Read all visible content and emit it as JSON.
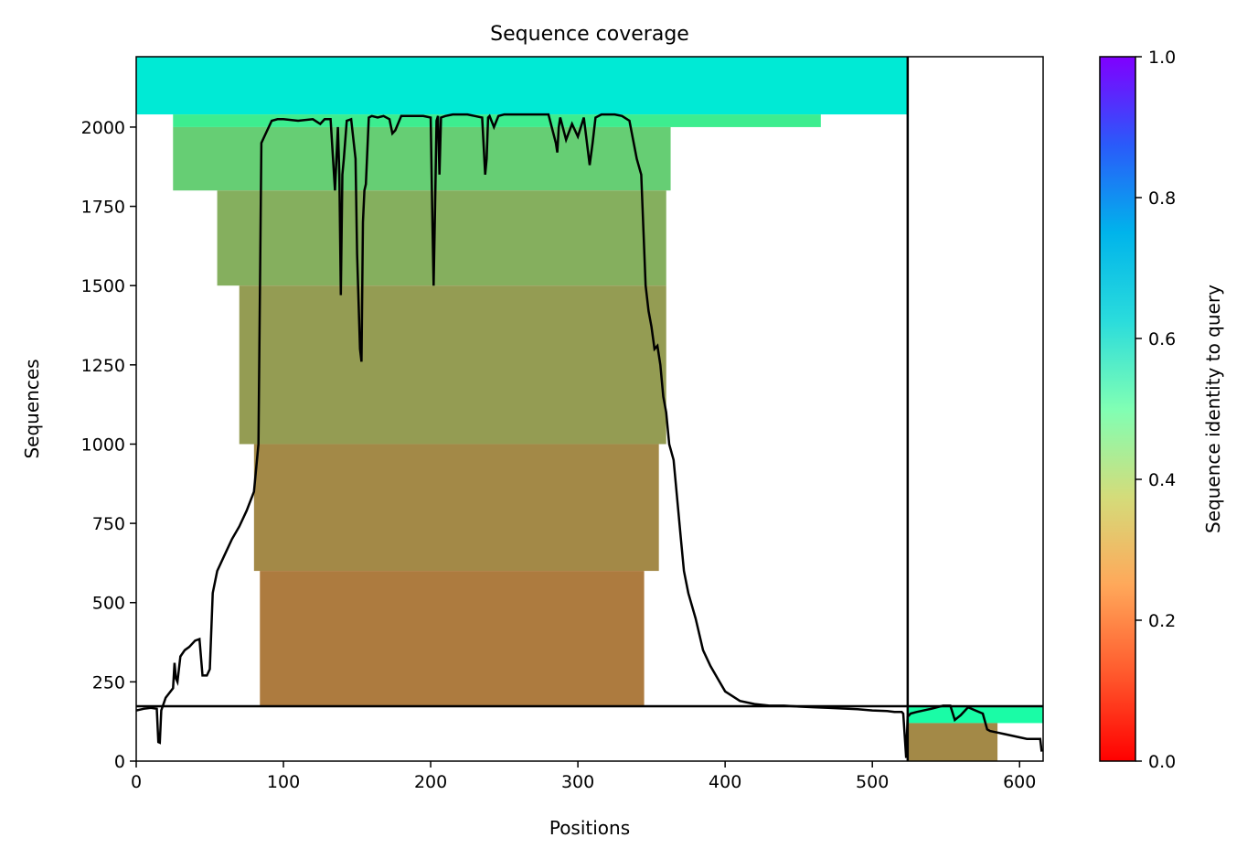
{
  "chart_data": {
    "type": "heatmap",
    "title": "Sequence coverage",
    "xlabel": "Positions",
    "ylabel": "Sequences",
    "xlim": [
      0,
      616
    ],
    "ylim": [
      0,
      2222
    ],
    "xticks": [
      0,
      100,
      200,
      300,
      400,
      500,
      600
    ],
    "yticks": [
      0,
      250,
      500,
      750,
      1000,
      1250,
      1500,
      1750,
      2000
    ],
    "colorbar": {
      "label": "Sequence identity to query",
      "range": [
        0,
        1
      ],
      "ticks": [
        "0.0",
        "0.2",
        "0.4",
        "0.6",
        "0.8",
        "1.0"
      ],
      "colormap": "rainbow_r"
    },
    "separators": {
      "vertical_at_x": 524,
      "horizontal_at_y": 173
    },
    "coverage_blocks": [
      {
        "rows": [
          2040,
          2222
        ],
        "x": [
          0,
          524
        ],
        "identity": 0.63
      },
      {
        "rows": [
          2000,
          2040
        ],
        "x": [
          25,
          465
        ],
        "identity": 0.38
      },
      {
        "rows": [
          1800,
          2000
        ],
        "x": [
          25,
          363
        ],
        "identity": 0.3
      },
      {
        "rows": [
          1500,
          1800
        ],
        "x": [
          55,
          360
        ],
        "identity": 0.24
      },
      {
        "rows": [
          1000,
          1500
        ],
        "x": [
          70,
          360
        ],
        "identity": 0.21
      },
      {
        "rows": [
          600,
          1000
        ],
        "x": [
          80,
          355
        ],
        "identity": 0.18
      },
      {
        "rows": [
          173,
          600
        ],
        "x": [
          84,
          345
        ],
        "identity": 0.16
      },
      {
        "rows": [
          120,
          173
        ],
        "x": [
          524,
          616
        ],
        "identity": 0.45
      },
      {
        "rows": [
          0,
          120
        ],
        "x": [
          524,
          585
        ],
        "identity": 0.18
      }
    ],
    "coverage_line": {
      "x": [
        0,
        5,
        10,
        14,
        15,
        16,
        17,
        20,
        25,
        26,
        27,
        28,
        30,
        33,
        36,
        40,
        43,
        45,
        48,
        50,
        52,
        55,
        60,
        65,
        70,
        75,
        80,
        83,
        85,
        88,
        92,
        96,
        100,
        110,
        120,
        125,
        128,
        132,
        135,
        137,
        138,
        139,
        140,
        141,
        143,
        146,
        149,
        150,
        152,
        153,
        154,
        155,
        156,
        158,
        160,
        164,
        168,
        172,
        174,
        176,
        180,
        185,
        190,
        195,
        200,
        201,
        202,
        203,
        204,
        205,
        206,
        207,
        210,
        215,
        220,
        225,
        230,
        235,
        237,
        238,
        239,
        240,
        243,
        246,
        250,
        260,
        270,
        280,
        285,
        286,
        287,
        288,
        292,
        296,
        300,
        304,
        308,
        310,
        312,
        316,
        320,
        325,
        330,
        335,
        340,
        343,
        346,
        348,
        350,
        352,
        354,
        356,
        358,
        360,
        362,
        365,
        368,
        370,
        372,
        375,
        380,
        385,
        390,
        395,
        400,
        410,
        420,
        430,
        440,
        450,
        460,
        470,
        480,
        490,
        500,
        510,
        515,
        520,
        521,
        522,
        523,
        524,
        526,
        530,
        540,
        548,
        553,
        556,
        560,
        565,
        570,
        575,
        578,
        580,
        585,
        590,
        600,
        605,
        610,
        614,
        615
      ],
      "y": [
        160,
        165,
        168,
        165,
        60,
        58,
        160,
        200,
        230,
        310,
        260,
        250,
        330,
        350,
        360,
        380,
        385,
        270,
        270,
        290,
        530,
        600,
        650,
        700,
        740,
        790,
        850,
        1000,
        1950,
        1980,
        2020,
        2025,
        2025,
        2020,
        2025,
        2010,
        2025,
        2025,
        1800,
        2000,
        1850,
        1470,
        1850,
        1900,
        2020,
        2025,
        1900,
        1600,
        1300,
        1260,
        1700,
        1800,
        1820,
        2030,
        2035,
        2030,
        2035,
        2025,
        1980,
        1990,
        2035,
        2035,
        2035,
        2035,
        2030,
        1750,
        1500,
        1750,
        2020,
        2035,
        1850,
        2030,
        2035,
        2040,
        2040,
        2040,
        2035,
        2030,
        1850,
        1900,
        2030,
        2035,
        2000,
        2035,
        2040,
        2040,
        2040,
        2040,
        1950,
        1920,
        2000,
        2030,
        1960,
        2010,
        1970,
        2030,
        1880,
        1950,
        2030,
        2040,
        2040,
        2040,
        2035,
        2020,
        1900,
        1850,
        1500,
        1420,
        1370,
        1300,
        1310,
        1250,
        1150,
        1100,
        1000,
        950,
        800,
        700,
        600,
        530,
        450,
        350,
        300,
        260,
        220,
        190,
        180,
        175,
        175,
        172,
        170,
        168,
        166,
        164,
        160,
        158,
        155,
        155,
        150,
        80,
        10,
        140,
        150,
        155,
        165,
        175,
        175,
        130,
        145,
        170,
        160,
        150,
        100,
        95,
        90,
        85,
        75,
        70,
        70,
        70,
        30,
        25
      ]
    }
  }
}
